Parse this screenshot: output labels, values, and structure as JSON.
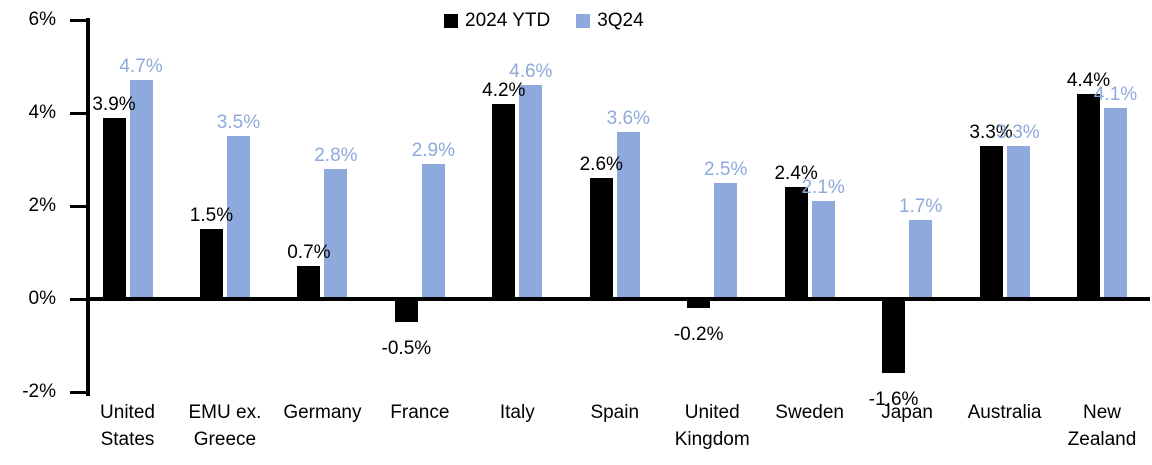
{
  "chart_data": {
    "type": "bar",
    "title": "",
    "categories": [
      "United\nStates",
      "EMU ex.\nGreece",
      "Germany",
      "France",
      "Italy",
      "Spain",
      "United\nKingdom",
      "Sweden",
      "Japan",
      "Australia",
      "New\nZealand"
    ],
    "series": [
      {
        "name": "2024 YTD",
        "color": "#000000",
        "values": [
          3.9,
          1.5,
          0.7,
          -0.5,
          4.2,
          2.6,
          -0.2,
          2.4,
          -1.6,
          3.3,
          4.4
        ]
      },
      {
        "name": "3Q24",
        "color": "#8EA9DB",
        "values": [
          4.7,
          3.5,
          2.8,
          2.9,
          4.6,
          3.6,
          2.5,
          2.1,
          1.7,
          3.3,
          4.1
        ]
      }
    ],
    "value_labels": [
      [
        "3.9%",
        "1.5%",
        "0.7%",
        "-0.5%",
        "4.2%",
        "2.6%",
        "-0.2%",
        "2.4%",
        "-1.6%",
        "3.3%",
        "4.4%"
      ],
      [
        "4.7%",
        "3.5%",
        "2.8%",
        "2.9%",
        "4.6%",
        "3.6%",
        "2.5%",
        "2.1%",
        "1.7%",
        "3.3%",
        "4.1%"
      ]
    ],
    "yticks": [
      6,
      4,
      2,
      0,
      -2
    ],
    "ytick_labels": [
      "6%",
      "4%",
      "2%",
      "0%",
      "-2%"
    ],
    "ylim": [
      -2,
      6
    ],
    "xlabel": "",
    "ylabel": "",
    "grid": false,
    "legend_position": "top-center",
    "axis_color": "#000000",
    "background_color": "#ffffff"
  }
}
